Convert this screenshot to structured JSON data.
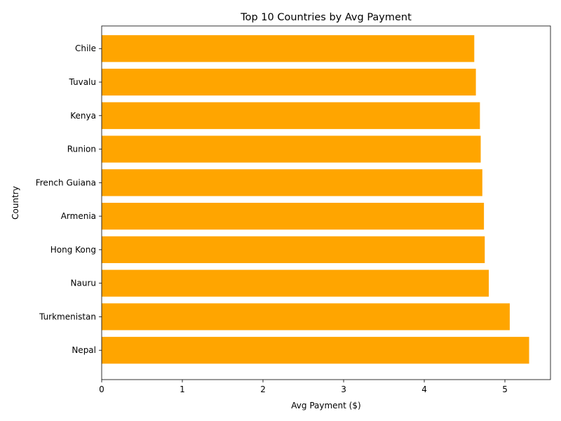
{
  "chart_data": {
    "type": "bar",
    "orientation": "horizontal",
    "title": "Top 10 Countries by Avg Payment",
    "xlabel": "Avg Payment ($)",
    "ylabel": "Country",
    "categories": [
      "Nepal",
      "Turkmenistan",
      "Nauru",
      "Hong Kong",
      "Armenia",
      "French Guiana",
      "Runion",
      "Kenya",
      "Tuvalu",
      "Chile"
    ],
    "values": [
      5.3,
      5.06,
      4.8,
      4.75,
      4.74,
      4.72,
      4.7,
      4.69,
      4.64,
      4.62
    ],
    "xlim": [
      0,
      5.565
    ],
    "xticks": [
      0,
      1,
      2,
      3,
      4,
      5
    ],
    "bar_color": "#FFA500",
    "grid": false,
    "legend": "none"
  }
}
